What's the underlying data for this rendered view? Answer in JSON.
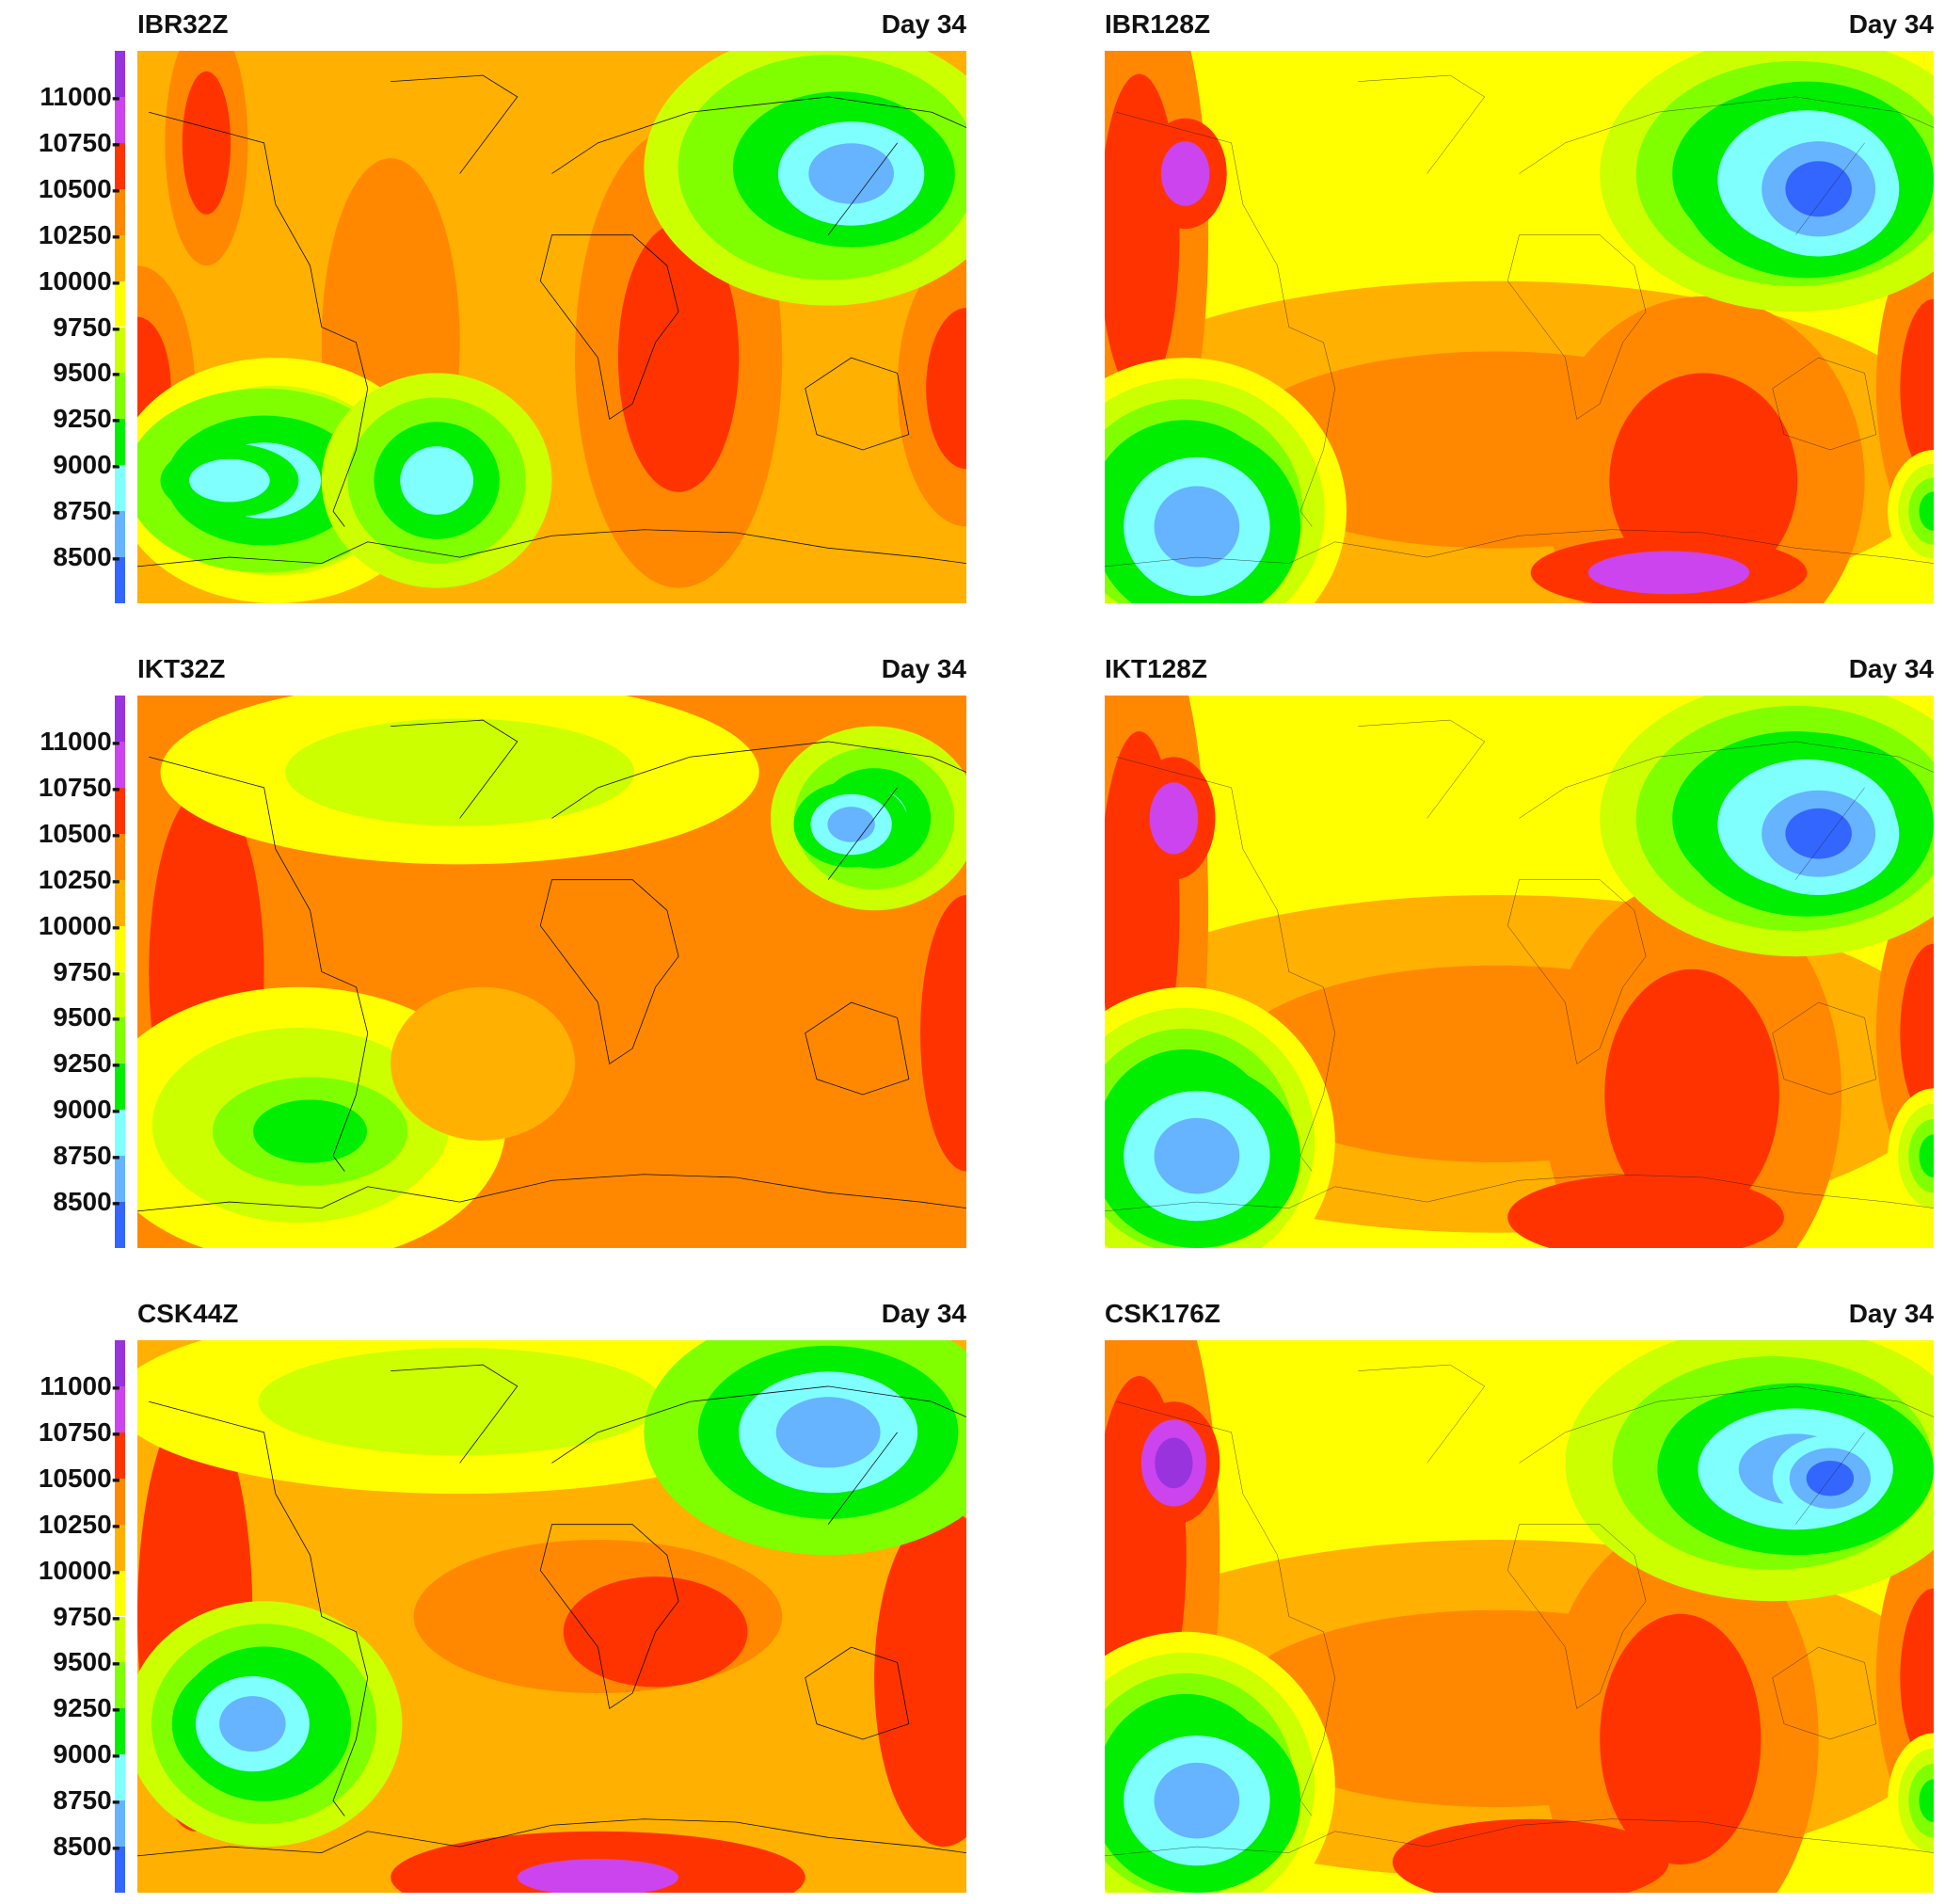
{
  "chart_data": {
    "type": "heatmap",
    "title": "",
    "colorbar": {
      "levels": [
        8250,
        8500,
        8750,
        9000,
        9250,
        9500,
        9750,
        10000,
        10250,
        10500,
        10750,
        11000,
        11250
      ],
      "tick_labels": [
        "11000-",
        "10750-",
        "10500-",
        "10250-",
        "10000-",
        "9750-",
        "9500-",
        "9250-",
        "9000-",
        "8750-",
        "8500-"
      ],
      "tick_values": [
        11000,
        10750,
        10500,
        10250,
        10000,
        9750,
        9500,
        9250,
        9000,
        8750,
        8500
      ],
      "colors": [
        "#3366ff",
        "#66b3ff",
        "#80ffff",
        "#00ee00",
        "#80ff00",
        "#ccff00",
        "#ffff00",
        "#ffb000",
        "#ff8800",
        "#ff3300",
        "#cc44ee",
        "#9933dd"
      ]
    },
    "panels": [
      {
        "name": "IBR32Z",
        "day": "Day 34"
      },
      {
        "name": "IBR128Z",
        "day": "Day 34"
      },
      {
        "name": "IKT32Z",
        "day": "Day 34"
      },
      {
        "name": "IKT128Z",
        "day": "Day 34"
      },
      {
        "name": "CSK44Z",
        "day": "Day 34"
      },
      {
        "name": "CSK176Z",
        "day": "Day 34"
      }
    ]
  }
}
